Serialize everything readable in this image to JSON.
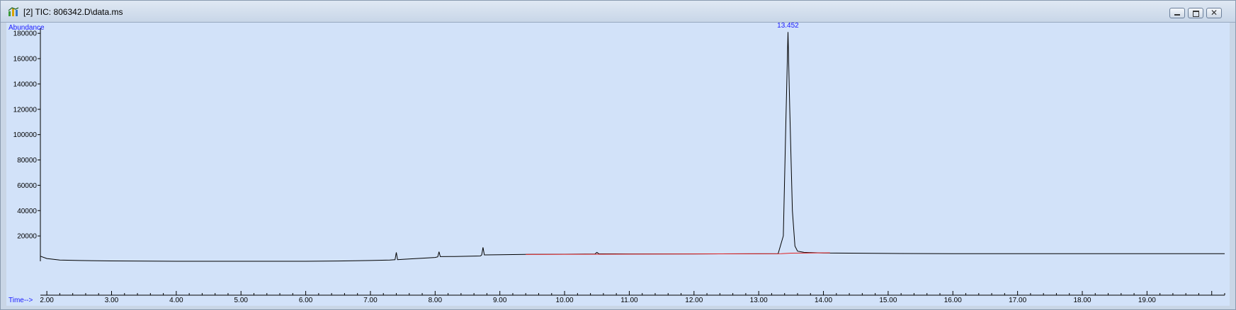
{
  "window": {
    "title": "[2] TIC: 806342.D\\data.ms",
    "controls": [
      "minimize",
      "restore",
      "close"
    ]
  },
  "colors": {
    "plot_background": "#d2e2f9",
    "trace": "#000000",
    "baseline": "#e02020",
    "label_blue": "#1a1aff"
  },
  "chart_data": {
    "type": "line",
    "title": "",
    "ylabel": "Abundance",
    "xlabel": "Time-->",
    "xlim": [
      1.9,
      20.2
    ],
    "ylim": [
      0,
      184000
    ],
    "x_ticks": [
      "2.00",
      "3.00",
      "4.00",
      "5.00",
      "6.00",
      "7.00",
      "8.00",
      "9.00",
      "10.00",
      "11.00",
      "12.00",
      "13.00",
      "14.00",
      "15.00",
      "16.00",
      "17.00",
      "18.00",
      "19.00"
    ],
    "y_ticks": [
      "20000",
      "40000",
      "60000",
      "80000",
      "100000",
      "120000",
      "140000",
      "160000",
      "180000"
    ],
    "grid": false,
    "peak_label": "13.452",
    "series": [
      {
        "x": [
          1.9,
          2.0,
          2.2,
          2.5,
          3.0,
          4.0,
          5.0,
          6.0,
          6.5,
          7.0,
          7.3,
          7.38,
          7.4,
          7.42,
          7.5,
          8.0,
          8.04,
          8.06,
          8.08,
          8.3,
          8.7,
          8.72,
          8.74,
          8.76,
          9.0,
          9.5,
          10.0,
          10.47,
          10.5,
          10.53,
          11.0,
          12.0,
          13.0,
          13.3,
          13.38,
          13.42,
          13.452,
          13.48,
          13.52,
          13.56,
          13.6,
          13.7,
          14.0,
          15.0,
          16.0,
          17.0,
          18.0,
          19.0,
          20.2
        ],
        "y": [
          4000,
          2200,
          1000,
          600,
          300,
          0,
          0,
          0,
          200,
          600,
          1000,
          1200,
          7000,
          1300,
          1500,
          3000,
          3500,
          7500,
          3700,
          3800,
          4200,
          5000,
          11000,
          5000,
          5200,
          5500,
          5600,
          5800,
          7000,
          5900,
          5800,
          5800,
          5900,
          6000,
          20000,
          110000,
          181000,
          120000,
          40000,
          12000,
          8000,
          7000,
          6500,
          6200,
          6000,
          6000,
          6000,
          6000,
          6000
        ]
      }
    ],
    "baseline": {
      "x": [
        9.4,
        13.35,
        13.5,
        14.1
      ],
      "y": [
        5400,
        6000,
        6400,
        6700
      ]
    }
  }
}
